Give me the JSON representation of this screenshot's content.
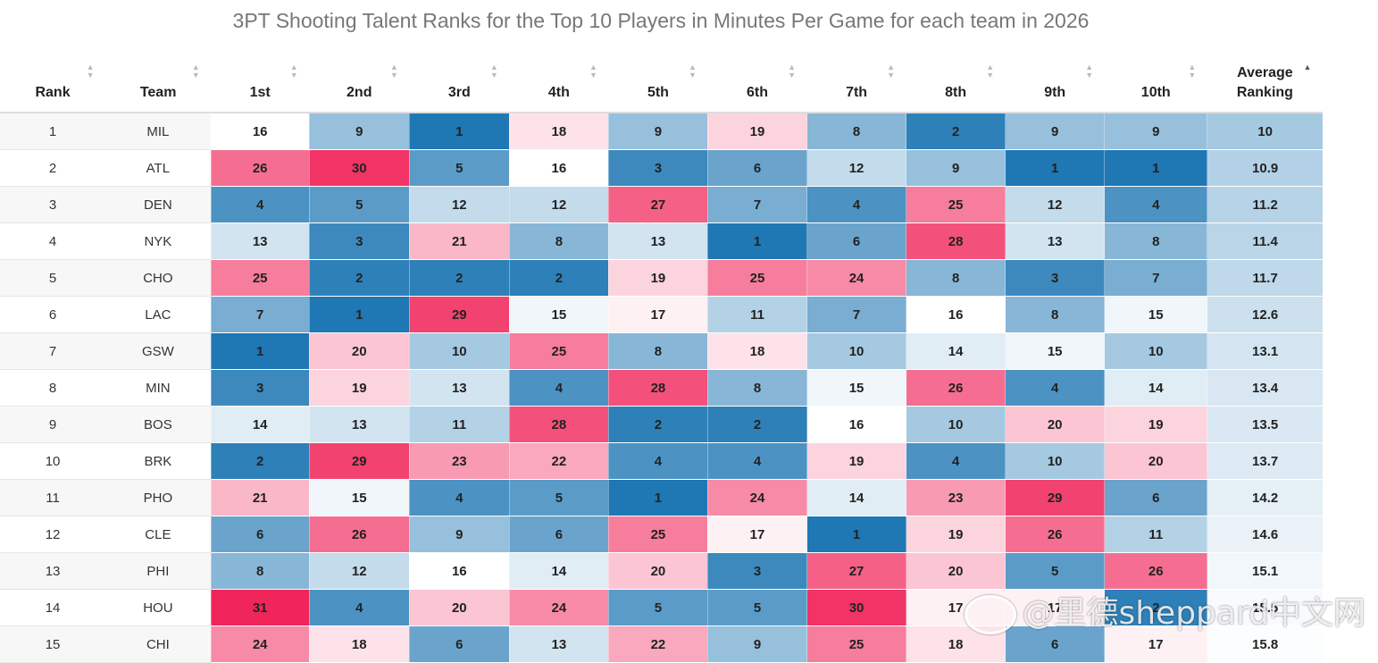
{
  "chart_data": {
    "type": "table",
    "title": "3PT Shooting Talent Ranks for the Top 10 Players in Minutes Per Game for each team in 2026",
    "columns": [
      "Rank",
      "Team",
      "1st",
      "2nd",
      "3rd",
      "4th",
      "5th",
      "6th",
      "7th",
      "8th",
      "9th",
      "10th",
      "Average Ranking"
    ],
    "sort": {
      "column": "Average Ranking",
      "direction": "ascending"
    },
    "color_scale": {
      "low": "#1f77b4",
      "mid": "#ffffff",
      "high": "#f0265a",
      "min": 1,
      "mid_value": 16,
      "max": 31
    },
    "rows": [
      {
        "rank": "1",
        "team": "MIL",
        "values": [
          16,
          9,
          1,
          18,
          9,
          19,
          8,
          2,
          9,
          9
        ],
        "avg": "10"
      },
      {
        "rank": "2",
        "team": "ATL",
        "values": [
          26,
          30,
          5,
          16,
          3,
          6,
          12,
          9,
          1,
          1
        ],
        "avg": "10.9"
      },
      {
        "rank": "3",
        "team": "DEN",
        "values": [
          4,
          5,
          12,
          12,
          27,
          7,
          4,
          25,
          12,
          4
        ],
        "avg": "11.2"
      },
      {
        "rank": "4",
        "team": "NYK",
        "values": [
          13,
          3,
          21,
          8,
          13,
          1,
          6,
          28,
          13,
          8
        ],
        "avg": "11.4"
      },
      {
        "rank": "5",
        "team": "CHO",
        "values": [
          25,
          2,
          2,
          2,
          19,
          25,
          24,
          8,
          3,
          7
        ],
        "avg": "11.7"
      },
      {
        "rank": "6",
        "team": "LAC",
        "values": [
          7,
          1,
          29,
          15,
          17,
          11,
          7,
          16,
          8,
          15
        ],
        "avg": "12.6"
      },
      {
        "rank": "7",
        "team": "GSW",
        "values": [
          1,
          20,
          10,
          25,
          8,
          18,
          10,
          14,
          15,
          10
        ],
        "avg": "13.1"
      },
      {
        "rank": "8",
        "team": "MIN",
        "values": [
          3,
          19,
          13,
          4,
          28,
          8,
          15,
          26,
          4,
          14
        ],
        "avg": "13.4"
      },
      {
        "rank": "9",
        "team": "BOS",
        "values": [
          14,
          13,
          11,
          28,
          2,
          2,
          16,
          10,
          20,
          19
        ],
        "avg": "13.5"
      },
      {
        "rank": "10",
        "team": "BRK",
        "values": [
          2,
          29,
          23,
          22,
          4,
          4,
          19,
          4,
          10,
          20
        ],
        "avg": "13.7"
      },
      {
        "rank": "11",
        "team": "PHO",
        "values": [
          21,
          15,
          4,
          5,
          1,
          24,
          14,
          23,
          29,
          6
        ],
        "avg": "14.2"
      },
      {
        "rank": "12",
        "team": "CLE",
        "values": [
          6,
          26,
          9,
          6,
          25,
          17,
          1,
          19,
          26,
          11
        ],
        "avg": "14.6"
      },
      {
        "rank": "13",
        "team": "PHI",
        "values": [
          8,
          12,
          16,
          14,
          20,
          3,
          27,
          20,
          5,
          26
        ],
        "avg": "15.1"
      },
      {
        "rank": "14",
        "team": "HOU",
        "values": [
          31,
          4,
          20,
          24,
          5,
          5,
          30,
          17,
          17,
          2
        ],
        "avg": "15.5"
      },
      {
        "rank": "15",
        "team": "CHI",
        "values": [
          24,
          18,
          6,
          13,
          22,
          9,
          25,
          18,
          6,
          17
        ],
        "avg": "15.8"
      }
    ]
  },
  "watermark": {
    "text": "@里德sheppard中文网",
    "icon": "weibo-eye-icon"
  }
}
